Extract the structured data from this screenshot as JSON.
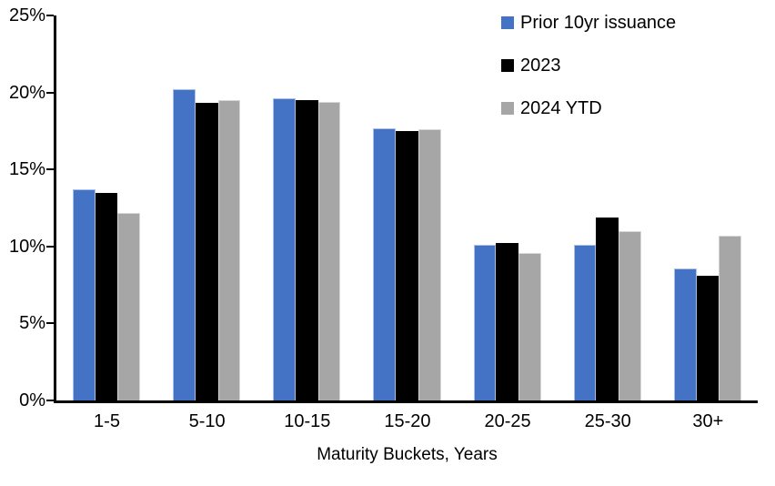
{
  "chart_data": {
    "type": "bar",
    "title": "",
    "xlabel": "Maturity Buckets, Years",
    "ylabel": "",
    "ylim": [
      0,
      25
    ],
    "ytick_step": 5,
    "ytick_labels": [
      "0%",
      "5%",
      "10%",
      "15%",
      "20%",
      "25%"
    ],
    "grid": false,
    "legend_position": "top-right",
    "categories": [
      "1-5",
      "5-10",
      "10-15",
      "15-20",
      "20-25",
      "25-30",
      "30+"
    ],
    "series": [
      {
        "name": "Prior 10yr issuance",
        "color": "#4472C4",
        "edge": "#A9C0E8",
        "values": [
          13.7,
          20.2,
          19.6,
          17.7,
          10.1,
          10.1,
          8.6
        ]
      },
      {
        "name": "2023",
        "color": "#000000",
        "edge": "#000000",
        "values": [
          13.5,
          19.3,
          19.5,
          17.5,
          10.2,
          11.9,
          8.1
        ]
      },
      {
        "name": "2024 YTD",
        "color": "#A6A6A6",
        "edge": "#D6D6D6",
        "values": [
          12.2,
          19.5,
          19.4,
          17.6,
          9.6,
          11.0,
          10.7
        ]
      }
    ]
  }
}
